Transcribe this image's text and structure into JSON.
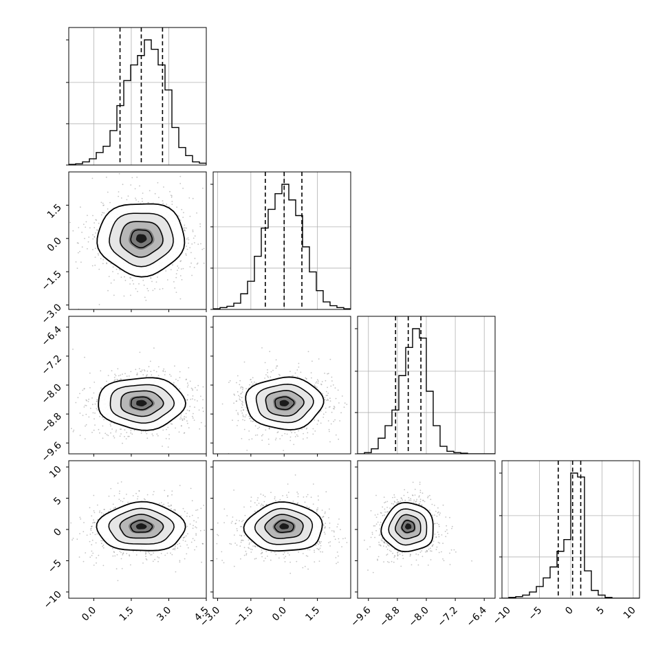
{
  "chart_data": {
    "type": "corner",
    "title": "",
    "grid": true,
    "parameters": [
      {
        "label": "",
        "range": [
          -1.0,
          4.5
        ],
        "ticks": [
          "0.0",
          "1.5",
          "3.0",
          "4.5"
        ],
        "tick_values": [
          0.0,
          1.5,
          3.0,
          4.5
        ],
        "quantiles": [
          1.05,
          1.9,
          2.75
        ]
      },
      {
        "label": "",
        "range": [
          -3.2,
          3.0
        ],
        "ticks": [
          "−3.0",
          "−1.5",
          "0.0",
          "1.5"
        ],
        "tick_values": [
          -3.0,
          -1.5,
          0.0,
          1.5
        ],
        "quantiles": [
          -0.85,
          0.0,
          0.8
        ]
      },
      {
        "label": "",
        "range": [
          -9.9,
          -6.1
        ],
        "ticks": [
          "−9.6",
          "−8.8",
          "−8.0",
          "−7.2",
          "−6.4"
        ],
        "tick_values": [
          -9.6,
          -8.8,
          -8.0,
          -7.2,
          -6.4
        ],
        "quantiles": [
          -8.85,
          -8.5,
          -8.15
        ]
      },
      {
        "label": "",
        "range": [
          -11,
          11
        ],
        "ticks": [
          "−10",
          "−5",
          "0",
          "5",
          "10"
        ],
        "tick_values": [
          -10,
          -5,
          0,
          5,
          10
        ],
        "quantiles": [
          -2.0,
          0.3,
          1.6
        ]
      }
    ],
    "histograms": [
      {
        "param": 0,
        "bin_start": -1.0,
        "bin_width": 0.275,
        "counts": [
          1,
          2,
          5,
          10,
          20,
          30,
          55,
          95,
          135,
          160,
          175,
          200,
          185,
          160,
          120,
          60,
          28,
          15,
          5,
          3
        ]
      },
      {
        "param": 1,
        "bin_start": -3.2,
        "bin_width": 0.31,
        "counts": [
          1,
          3,
          5,
          10,
          25,
          45,
          85,
          130,
          160,
          185,
          200,
          175,
          150,
          100,
          60,
          30,
          12,
          6,
          3,
          1
        ]
      },
      {
        "param": 2,
        "bin_start": -9.9,
        "bin_width": 0.19,
        "counts": [
          0,
          2,
          8,
          25,
          45,
          70,
          125,
          170,
          200,
          185,
          100,
          45,
          12,
          4,
          2,
          1,
          0,
          0,
          0,
          0
        ]
      },
      {
        "param": 3,
        "bin_start": -11.0,
        "bin_width": 1.1,
        "counts": [
          0,
          1,
          2,
          4,
          8,
          15,
          26,
          40,
          60,
          75,
          160,
          155,
          35,
          10,
          4,
          1,
          0,
          0,
          0,
          0
        ]
      }
    ],
    "pairs": [
      {
        "x": 0,
        "y": 1,
        "center": [
          1.9,
          0.0
        ],
        "spread": [
          0.85,
          0.8
        ],
        "skew": 0
      },
      {
        "x": 0,
        "y": 2,
        "center": [
          1.9,
          -8.5
        ],
        "spread": [
          0.85,
          0.35
        ],
        "skew": 0
      },
      {
        "x": 1,
        "y": 2,
        "center": [
          0.0,
          -8.5
        ],
        "spread": [
          0.85,
          0.35
        ],
        "skew": 0
      },
      {
        "x": 0,
        "y": 3,
        "center": [
          1.9,
          0.5
        ],
        "spread": [
          0.85,
          1.9
        ],
        "skew": -0.5
      },
      {
        "x": 1,
        "y": 3,
        "center": [
          0.0,
          0.5
        ],
        "spread": [
          0.85,
          1.9
        ],
        "skew": -0.5
      },
      {
        "x": 2,
        "y": 3,
        "center": [
          -8.5,
          0.5
        ],
        "spread": [
          0.35,
          1.9
        ],
        "skew": -0.55
      }
    ]
  }
}
